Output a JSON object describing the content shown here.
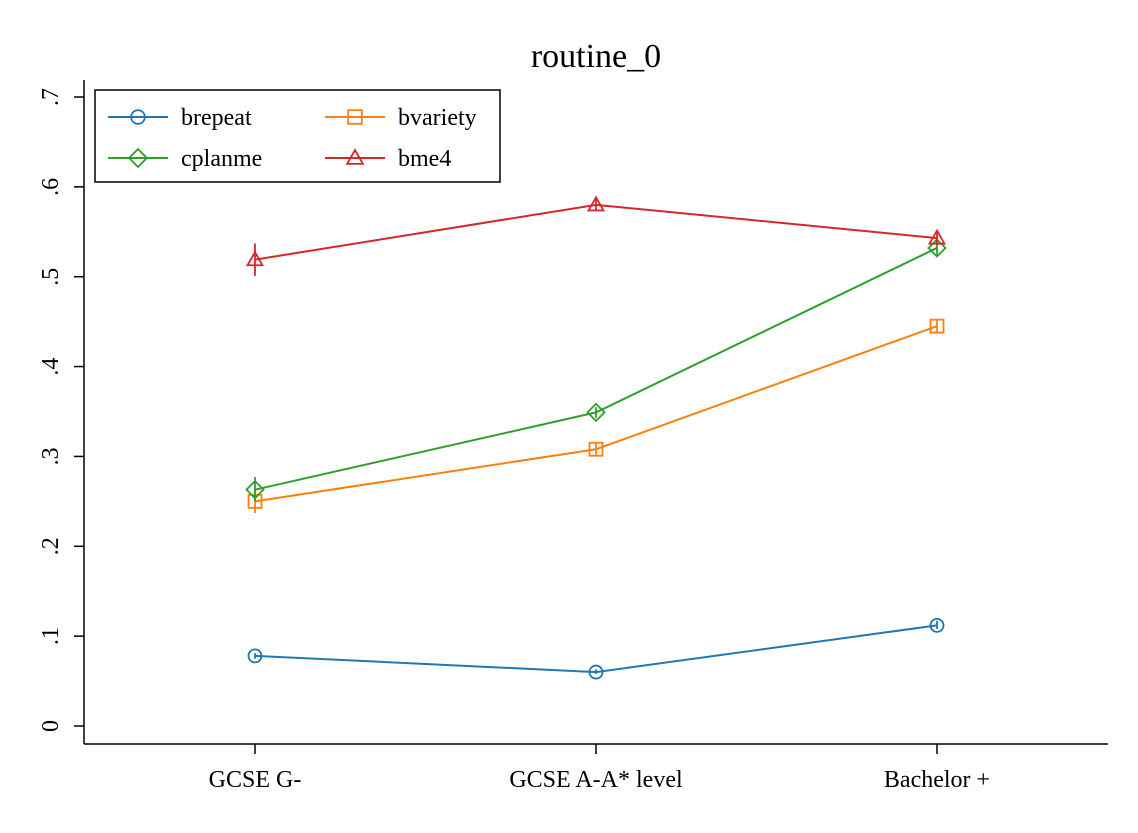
{
  "chart_data": {
    "type": "line",
    "title": "routine_0",
    "xlabel": "",
    "ylabel": "",
    "categories": [
      "GCSE G-",
      "GCSE A-A* level",
      "Bachelor +"
    ],
    "ylim": [
      0,
      0.7
    ],
    "yticks": [
      0,
      0.1,
      0.2,
      0.3,
      0.4,
      0.5,
      0.6,
      0.7
    ],
    "ytick_labels": [
      "0",
      ".1",
      ".2",
      ".3",
      ".4",
      ".5",
      ".6",
      ".7"
    ],
    "grid": false,
    "legend_position": "top-left",
    "series": [
      {
        "name": "brepeat",
        "marker": "circle",
        "color": "#1f77b4",
        "values": [
          0.078,
          0.06,
          0.112
        ],
        "ci_low": [
          0.075,
          0.058,
          0.108
        ],
        "ci_high": [
          0.081,
          0.063,
          0.117
        ]
      },
      {
        "name": "bvariety",
        "marker": "square",
        "color": "#ff7f0e",
        "values": [
          0.25,
          0.308,
          0.445
        ],
        "ci_low": [
          0.237,
          0.302,
          0.437
        ],
        "ci_high": [
          0.264,
          0.315,
          0.453
        ]
      },
      {
        "name": "cplanme",
        "marker": "diamond",
        "color": "#2ca02c",
        "values": [
          0.263,
          0.349,
          0.532
        ],
        "ci_low": [
          0.25,
          0.343,
          0.524
        ],
        "ci_high": [
          0.277,
          0.355,
          0.54
        ]
      },
      {
        "name": "bme4",
        "marker": "triangle",
        "color": "#d62728",
        "values": [
          0.519,
          0.58,
          0.543
        ],
        "ci_low": [
          0.501,
          0.573,
          0.535
        ],
        "ci_high": [
          0.537,
          0.587,
          0.551
        ]
      }
    ]
  }
}
